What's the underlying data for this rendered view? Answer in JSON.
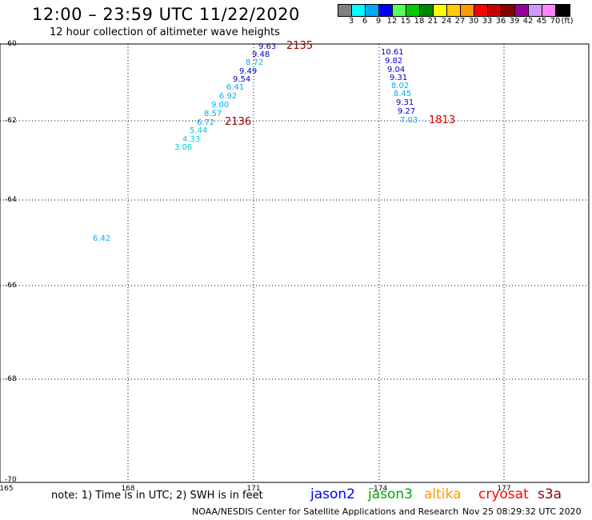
{
  "header": {
    "title": "12:00 – 23:59 UTC 11/22/2020",
    "subtitle": "12 hour collection of altimeter wave heights"
  },
  "colorbar": {
    "colors": [
      "#808080",
      "#00ffff",
      "#00aaff",
      "#0000ff",
      "#55ff55",
      "#00cc00",
      "#008800",
      "#ffff00",
      "#ffcc00",
      "#ff9900",
      "#ff0000",
      "#cc0000",
      "#880000",
      "#990099",
      "#cc99ff",
      "#ff88ff",
      "#000000"
    ],
    "ticks": [
      "3",
      "6",
      "9",
      "12",
      "15",
      "18",
      "21",
      "24",
      "27",
      "30",
      "33",
      "36",
      "39",
      "42",
      "45",
      "70",
      "(ft)"
    ]
  },
  "axes": {
    "lat_labels": [
      "-60",
      "-62",
      "-64",
      "-66",
      "-68",
      "-70"
    ],
    "lon_labels": [
      "165",
      "168",
      "171",
      "-174",
      "177"
    ]
  },
  "passes": {
    "a": [
      {
        "v": "9.63",
        "c": "#0000cc"
      },
      {
        "v": "9.48",
        "c": "#0000cc"
      },
      {
        "v": "8.72",
        "c": "#00aaff"
      },
      {
        "v": "9.49",
        "c": "#0000cc"
      },
      {
        "v": "9.54",
        "c": "#0000cc"
      },
      {
        "v": "6.41",
        "c": "#00aaff"
      },
      {
        "v": "6.92",
        "c": "#00aaff"
      },
      {
        "v": "9.00",
        "c": "#00aaff"
      },
      {
        "v": "8.57",
        "c": "#00aaff"
      },
      {
        "v": "6.72",
        "c": "#00aaff"
      },
      {
        "v": "5.44",
        "c": "#00cccc"
      },
      {
        "v": "4.33",
        "c": "#00cccc"
      },
      {
        "v": "3.06",
        "c": "#00cccc"
      }
    ],
    "b": [
      {
        "v": "10.61",
        "c": "#0000cc"
      },
      {
        "v": "9.82",
        "c": "#0000cc"
      },
      {
        "v": "9.04",
        "c": "#0000cc"
      },
      {
        "v": "9.31",
        "c": "#0000cc"
      },
      {
        "v": "8.02",
        "c": "#00aaff"
      },
      {
        "v": "8.45",
        "c": "#00aaff"
      },
      {
        "v": "9.31",
        "c": "#0000cc"
      },
      {
        "v": "9.27",
        "c": "#0000cc"
      },
      {
        "v": "7.03",
        "c": "#00aaff"
      }
    ],
    "isolated": {
      "v": "6.42",
      "c": "#00aaff"
    },
    "times": [
      "2135",
      "2136",
      "1813"
    ]
  },
  "footer": {
    "note": "note: 1) Time is in UTC; 2) SWH is in feet",
    "satellites": [
      {
        "name": "jason2",
        "color": "#0000ff"
      },
      {
        "name": "jason3",
        "color": "#00aa00"
      },
      {
        "name": "altika",
        "color": "#ff9900"
      },
      {
        "name": "cryosat",
        "color": "#ff0000"
      },
      {
        "name": "s3a",
        "color": "#8b0000"
      }
    ],
    "credit": "NOAA/NESDIS Center for Satellite Applications and Research",
    "timestamp": "Nov 25 08:29:32 UTC 2020"
  }
}
